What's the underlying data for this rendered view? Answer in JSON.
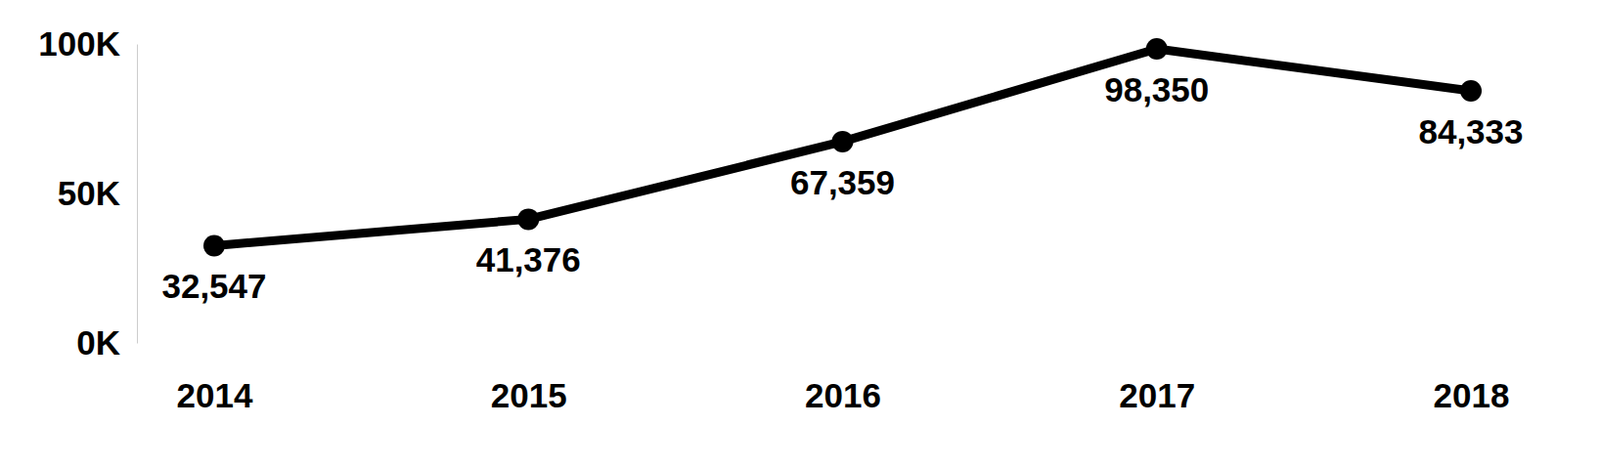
{
  "chart_data": {
    "type": "line",
    "categories": [
      "2014",
      "2015",
      "2016",
      "2017",
      "2018"
    ],
    "values": [
      32547,
      41376,
      67359,
      98350,
      84333
    ],
    "value_labels": [
      "32,547",
      "41,376",
      "67,359",
      "98,350",
      "84,333"
    ],
    "color": "#000000",
    "marker": "circle",
    "line_style": "solid",
    "ylim": [
      0,
      100000
    ],
    "yticks": [
      {
        "value": 0,
        "label": "0K"
      },
      {
        "value": 50000,
        "label": "50K"
      },
      {
        "value": 100000,
        "label": "100K"
      }
    ],
    "data_labels": true,
    "grid": false
  }
}
